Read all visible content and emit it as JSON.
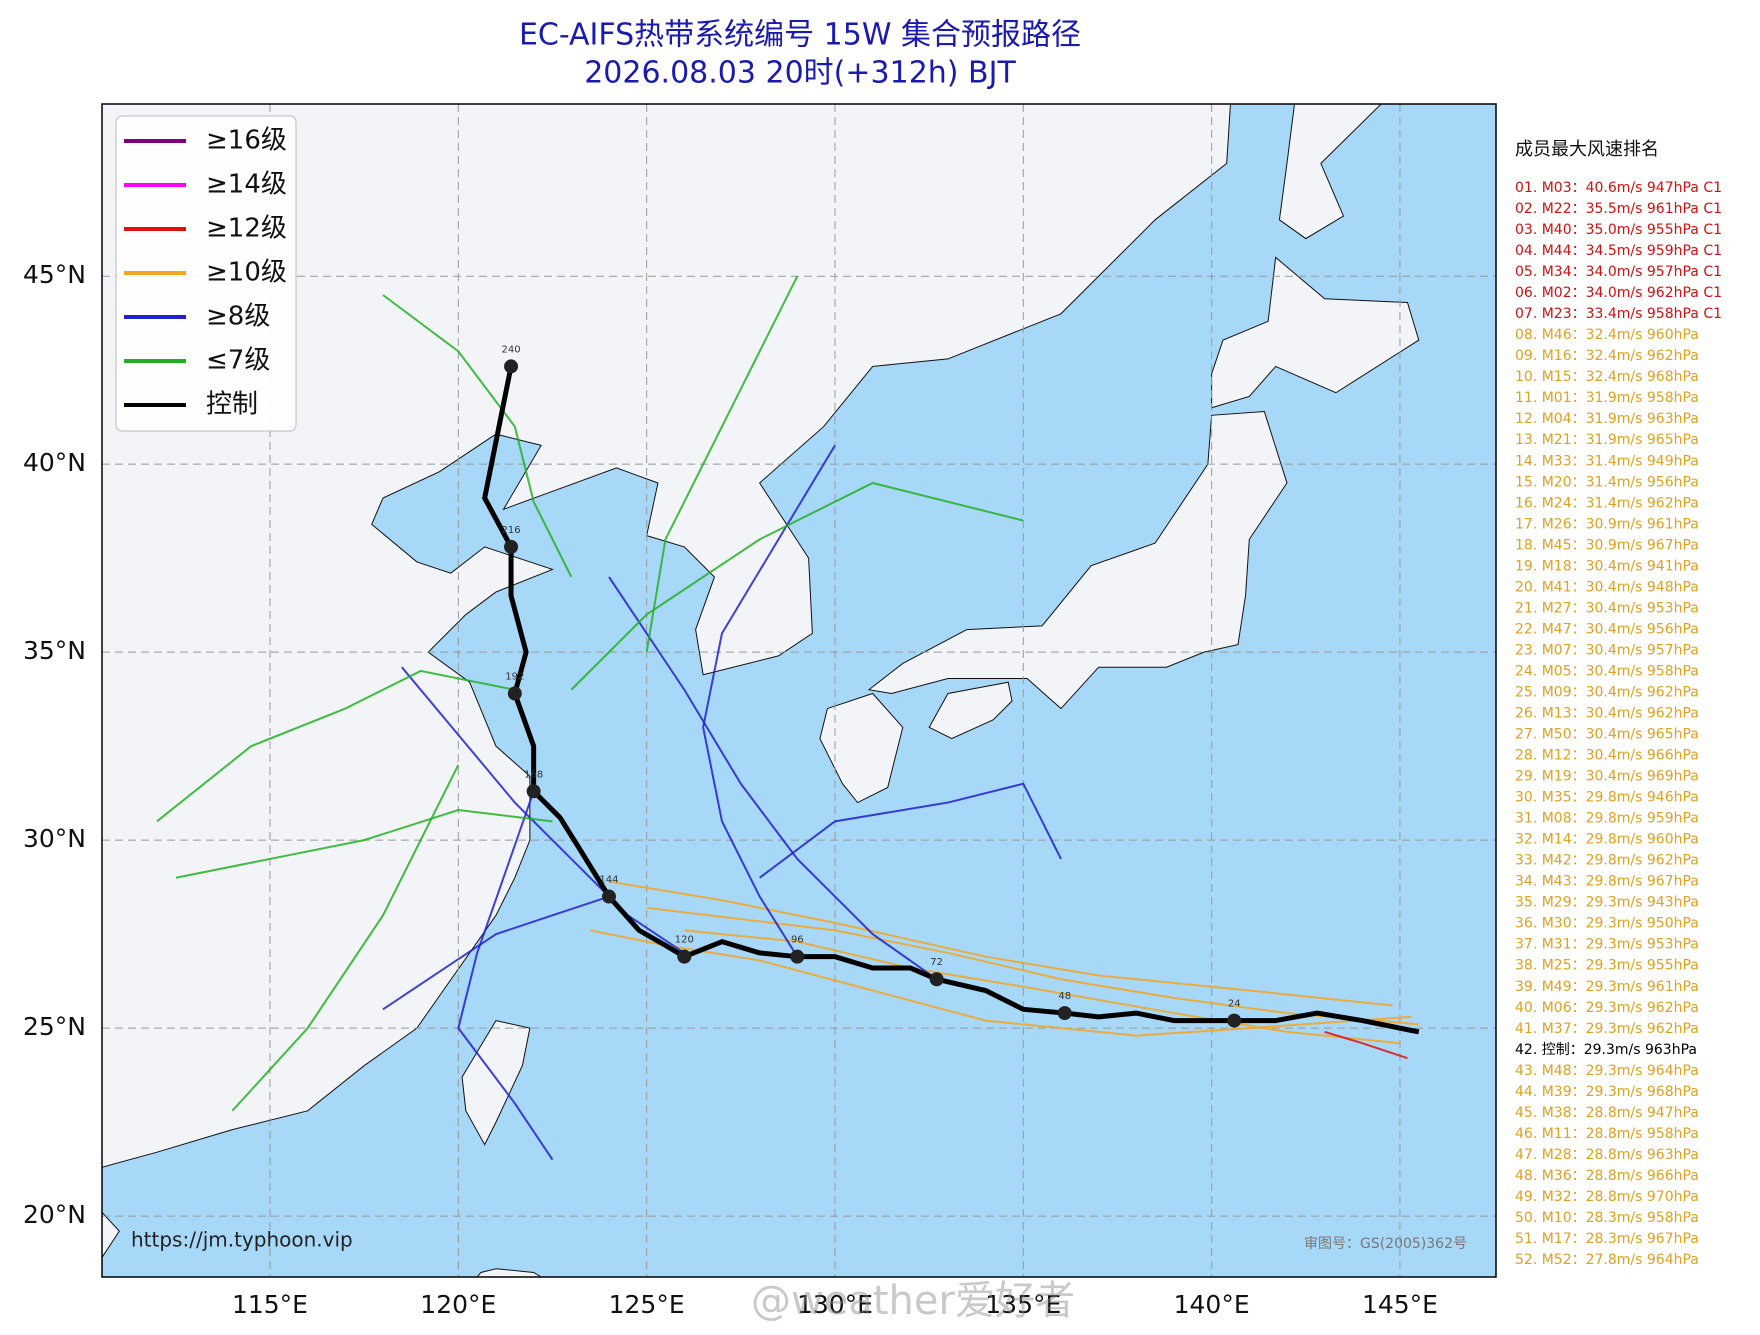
{
  "header": {
    "title": "EC-AIFS热带系统编号 15W 集合预报路径",
    "subtitle": "2026.08.03 20时(+312h) BJT"
  },
  "map": {
    "lonlim": [
      110.54,
      147.55
    ],
    "latlim": [
      18.38,
      49.58
    ],
    "lonticks": [
      {
        "value": 115,
        "label": "115°E"
      },
      {
        "value": 120,
        "label": "120°E"
      },
      {
        "value": 125,
        "label": "125°E"
      },
      {
        "value": 130,
        "label": "130°E"
      },
      {
        "value": 135,
        "label": "135°E"
      },
      {
        "value": 140,
        "label": "140°E"
      },
      {
        "value": 145,
        "label": "145°E"
      }
    ],
    "latticks": [
      {
        "value": 20,
        "label": "20°N"
      },
      {
        "value": 25,
        "label": "25°N"
      },
      {
        "value": 30,
        "label": "30°N"
      },
      {
        "value": 35,
        "label": "35°N"
      },
      {
        "value": 40,
        "label": "40°N"
      },
      {
        "value": 45,
        "label": "45°N"
      }
    ],
    "grid": true,
    "legend": [
      {
        "label": "≥16级",
        "color": "#800080"
      },
      {
        "label": "≥14级",
        "color": "#ff00ff"
      },
      {
        "label": "≥12级",
        "color": "#e01010"
      },
      {
        "label": "≥10级",
        "color": "#f5a520"
      },
      {
        "label": "≥8级",
        "color": "#2020d0"
      },
      {
        "label": "≤7级",
        "color": "#22b022"
      },
      {
        "label": "控制",
        "color": "#000000"
      }
    ],
    "member_tracks": [
      {
        "color": "#f5a520",
        "lon": [
          145.5,
          142,
          139,
          136,
          133,
          130,
          127.5,
          125
        ],
        "lat": [
          25.1,
          25.4,
          25.8,
          26.3,
          27,
          27.6,
          27.9,
          28.2
        ]
      },
      {
        "color": "#f5a520",
        "lon": [
          145.3,
          141,
          138,
          134,
          131,
          128,
          125.5,
          123.5
        ],
        "lat": [
          25.3,
          25.0,
          24.8,
          25.2,
          26,
          26.8,
          27.2,
          27.6
        ]
      },
      {
        "color": "#f5a520",
        "lon": [
          145,
          142,
          139,
          135,
          132,
          129,
          126
        ],
        "lat": [
          24.6,
          24.9,
          25.4,
          26.1,
          26.6,
          27.3,
          27.6
        ]
      },
      {
        "color": "#f5a520",
        "lon": [
          144.8,
          141,
          137,
          134,
          130,
          127,
          124
        ],
        "lat": [
          25.6,
          26,
          26.4,
          26.9,
          27.8,
          28.4,
          28.9
        ]
      },
      {
        "color": "#e01010",
        "lon": [
          145.2,
          144,
          143
        ],
        "lat": [
          24.2,
          24.6,
          24.9
        ]
      },
      {
        "color": "#2020d0",
        "lon": [
          126,
          124.5,
          123,
          121.5,
          120,
          118.5
        ],
        "lat": [
          27,
          28,
          29.5,
          31,
          32.8,
          34.6
        ]
      },
      {
        "color": "#2020d0",
        "lon": [
          129,
          128,
          127,
          126.5,
          127,
          128.5,
          130
        ],
        "lat": [
          26.9,
          28.5,
          30.5,
          33,
          35.5,
          38,
          40.5
        ]
      },
      {
        "color": "#2020d0",
        "lon": [
          124,
          122.5,
          121,
          119.5,
          118
        ],
        "lat": [
          28.5,
          28,
          27.5,
          26.5,
          25.5
        ]
      },
      {
        "color": "#2020d0",
        "lon": [
          132.7,
          131,
          129,
          127.5,
          126,
          124
        ],
        "lat": [
          26.3,
          27.5,
          29.5,
          31.5,
          34,
          37
        ]
      },
      {
        "color": "#2020d0",
        "lon": [
          128,
          130,
          133,
          135,
          136
        ],
        "lat": [
          29,
          30.5,
          31,
          31.5,
          29.5
        ]
      },
      {
        "color": "#2020d0",
        "lon": [
          122,
          121.2,
          120.5,
          120,
          121.5,
          122.5
        ],
        "lat": [
          31.3,
          29,
          27,
          25,
          23,
          21.5
        ]
      },
      {
        "color": "#22b022",
        "lon": [
          122.5,
          120,
          117.5,
          115,
          112.5
        ],
        "lat": [
          30.5,
          30.8,
          30,
          29.5,
          29
        ]
      },
      {
        "color": "#22b022",
        "lon": [
          121.5,
          119,
          117,
          114.5,
          112
        ],
        "lat": [
          34,
          34.5,
          33.5,
          32.5,
          30.5
        ]
      },
      {
        "color": "#22b022",
        "lon": [
          125,
          125.5,
          127,
          128,
          129
        ],
        "lat": [
          35,
          38,
          41,
          43,
          45
        ]
      },
      {
        "color": "#22b022",
        "lon": [
          123,
          125,
          128,
          131,
          135
        ],
        "lat": [
          34,
          36,
          38,
          39.5,
          38.5
        ]
      },
      {
        "color": "#22b022",
        "lon": [
          120,
          118,
          116,
          114
        ],
        "lat": [
          32,
          28,
          25,
          22.8
        ]
      },
      {
        "color": "#22b022",
        "lon": [
          123,
          122,
          121.5,
          120,
          118
        ],
        "lat": [
          37,
          39,
          41,
          43,
          44.5
        ]
      }
    ],
    "control_track": {
      "color": "#000000",
      "lon": [
        145.5,
        144,
        142.8,
        141.7,
        140.6,
        139,
        138,
        137,
        136.1,
        135,
        134,
        132.7,
        132,
        131,
        130,
        129,
        128,
        127,
        126,
        125.5,
        124.8,
        124,
        123.2,
        122.7,
        122,
        122,
        121.5,
        121.8,
        121.4,
        121.4,
        120.7,
        121.4
      ],
      "lat": [
        24.9,
        25.2,
        25.4,
        25.2,
        25.2,
        25.2,
        25.4,
        25.3,
        25.4,
        25.5,
        26.0,
        26.3,
        26.6,
        26.6,
        26.9,
        26.9,
        27.0,
        27.3,
        26.9,
        27.2,
        27.6,
        28.5,
        29.8,
        30.6,
        31.3,
        32.5,
        33.9,
        35.0,
        36.5,
        37.8,
        39.1,
        42.6
      ]
    },
    "control_points": {
      "hours": [
        24,
        48,
        72,
        96,
        120,
        144,
        168,
        192,
        216,
        240
      ],
      "lon": [
        140.6,
        136.1,
        132.7,
        129,
        126,
        124,
        122,
        121.5,
        121.4,
        121.4
      ],
      "lat": [
        25.2,
        25.4,
        26.3,
        26.9,
        26.9,
        28.5,
        31.3,
        33.9,
        37.8,
        42.6
      ]
    }
  },
  "ranking": {
    "title": "成员最大风速排名",
    "entries": [
      {
        "text": "01. M03：40.6m/s 947hPa C1",
        "color": "#d01010"
      },
      {
        "text": "02. M22：35.5m/s 961hPa C1",
        "color": "#d01010"
      },
      {
        "text": "03. M40：35.0m/s 955hPa C1",
        "color": "#d01010"
      },
      {
        "text": "04. M44：34.5m/s 959hPa C1",
        "color": "#d01010"
      },
      {
        "text": "05. M34：34.0m/s 957hPa C1",
        "color": "#d01010"
      },
      {
        "text": "06. M02：34.0m/s 962hPa C1",
        "color": "#d01010"
      },
      {
        "text": "07. M23：33.4m/s 958hPa C1",
        "color": "#d01010"
      },
      {
        "text": "08. M46：32.4m/s 960hPa",
        "color": "#e0a020"
      },
      {
        "text": "09. M16：32.4m/s 962hPa",
        "color": "#e0a020"
      },
      {
        "text": "10. M15：32.4m/s 968hPa",
        "color": "#e0a020"
      },
      {
        "text": "11. M01：31.9m/s 958hPa",
        "color": "#e0a020"
      },
      {
        "text": "12. M04：31.9m/s 963hPa",
        "color": "#e0a020"
      },
      {
        "text": "13. M21：31.9m/s 965hPa",
        "color": "#e0a020"
      },
      {
        "text": "14. M33：31.4m/s 949hPa",
        "color": "#e0a020"
      },
      {
        "text": "15. M20：31.4m/s 956hPa",
        "color": "#e0a020"
      },
      {
        "text": "16. M24：31.4m/s 962hPa",
        "color": "#e0a020"
      },
      {
        "text": "17. M26：30.9m/s 961hPa",
        "color": "#e0a020"
      },
      {
        "text": "18. M45：30.9m/s 967hPa",
        "color": "#e0a020"
      },
      {
        "text": "19. M18：30.4m/s 941hPa",
        "color": "#e0a020"
      },
      {
        "text": "20. M41：30.4m/s 948hPa",
        "color": "#e0a020"
      },
      {
        "text": "21. M27：30.4m/s 953hPa",
        "color": "#e0a020"
      },
      {
        "text": "22. M47：30.4m/s 956hPa",
        "color": "#e0a020"
      },
      {
        "text": "23. M07：30.4m/s 957hPa",
        "color": "#e0a020"
      },
      {
        "text": "24. M05：30.4m/s 958hPa",
        "color": "#e0a020"
      },
      {
        "text": "25. M09：30.4m/s 962hPa",
        "color": "#e0a020"
      },
      {
        "text": "26. M13：30.4m/s 962hPa",
        "color": "#e0a020"
      },
      {
        "text": "27. M50：30.4m/s 965hPa",
        "color": "#e0a020"
      },
      {
        "text": "28. M12：30.4m/s 966hPa",
        "color": "#e0a020"
      },
      {
        "text": "29. M19：30.4m/s 969hPa",
        "color": "#e0a020"
      },
      {
        "text": "30. M35：29.8m/s 946hPa",
        "color": "#e0a020"
      },
      {
        "text": "31. M08：29.8m/s 959hPa",
        "color": "#e0a020"
      },
      {
        "text": "32. M14：29.8m/s 960hPa",
        "color": "#e0a020"
      },
      {
        "text": "33. M42：29.8m/s 962hPa",
        "color": "#e0a020"
      },
      {
        "text": "34. M43：29.8m/s 967hPa",
        "color": "#e0a020"
      },
      {
        "text": "35. M29：29.3m/s 943hPa",
        "color": "#e0a020"
      },
      {
        "text": "36. M30：29.3m/s 950hPa",
        "color": "#e0a020"
      },
      {
        "text": "37. M31：29.3m/s 953hPa",
        "color": "#e0a020"
      },
      {
        "text": "38. M25：29.3m/s 955hPa",
        "color": "#e0a020"
      },
      {
        "text": "39. M49：29.3m/s 961hPa",
        "color": "#e0a020"
      },
      {
        "text": "40. M06：29.3m/s 962hPa",
        "color": "#e0a020"
      },
      {
        "text": "41. M37：29.3m/s 962hPa",
        "color": "#e0a020"
      },
      {
        "text": "42. 控制：29.3m/s 963hPa",
        "color": "#000000"
      },
      {
        "text": "43. M48：29.3m/s 964hPa",
        "color": "#e0a020"
      },
      {
        "text": "44. M39：29.3m/s 968hPa",
        "color": "#e0a020"
      },
      {
        "text": "45. M38：28.8m/s 947hPa",
        "color": "#e0a020"
      },
      {
        "text": "46. M11：28.8m/s 958hPa",
        "color": "#e0a020"
      },
      {
        "text": "47. M28：28.8m/s 963hPa",
        "color": "#e0a020"
      },
      {
        "text": "48. M36：28.8m/s 966hPa",
        "color": "#e0a020"
      },
      {
        "text": "49. M32：28.8m/s 970hPa",
        "color": "#e0a020"
      },
      {
        "text": "50. M10：28.3m/s 958hPa",
        "color": "#e0a020"
      },
      {
        "text": "51. M17：28.3m/s 967hPa",
        "color": "#e0a020"
      },
      {
        "text": "52. M52：27.8m/s 964hPa",
        "color": "#e0a020"
      }
    ]
  },
  "footer": {
    "url": "https://jm.typhoon.vip",
    "approval": "审图号：GS(2005)362号",
    "watermark": "@weather爱好者"
  }
}
